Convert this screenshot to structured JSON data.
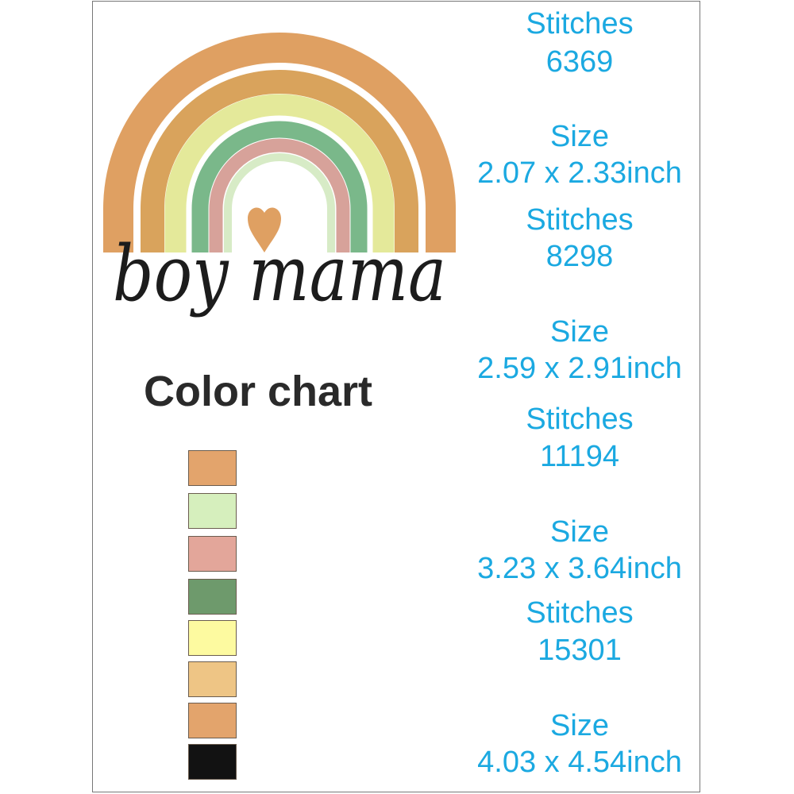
{
  "design": {
    "text": "boy mama",
    "rainbow_colors": [
      "#dfa062",
      "#d9a35c",
      "#e4e99a",
      "#7ab88a",
      "#d7a29a",
      "#d7ebc6"
    ],
    "heart_color": "#dfa062",
    "text_color": "#1c1c1c"
  },
  "color_chart": {
    "title": "Color chart",
    "swatches": [
      "#e3a46c",
      "#d6efbd",
      "#e3a69a",
      "#6e9a6c",
      "#fdfaa0",
      "#eec585",
      "#e3a46c",
      "#121212"
    ]
  },
  "sizes": [
    {
      "stitches_label": "Stitches",
      "stitches": "6369",
      "size_label": "Size",
      "size": "2.07 x 2.33inch"
    },
    {
      "stitches_label": "Stitches",
      "stitches": "8298",
      "size_label": "Size",
      "size": "2.59 x 2.91inch"
    },
    {
      "stitches_label": "Stitches",
      "stitches": "11194",
      "size_label": "Size",
      "size": "3.23 x 3.64inch"
    },
    {
      "stitches_label": "Stitches",
      "stitches": "15301",
      "size_label": "Size",
      "size": "4.03 x 4.54inch"
    }
  ],
  "accent_color": "#1ba9e1"
}
